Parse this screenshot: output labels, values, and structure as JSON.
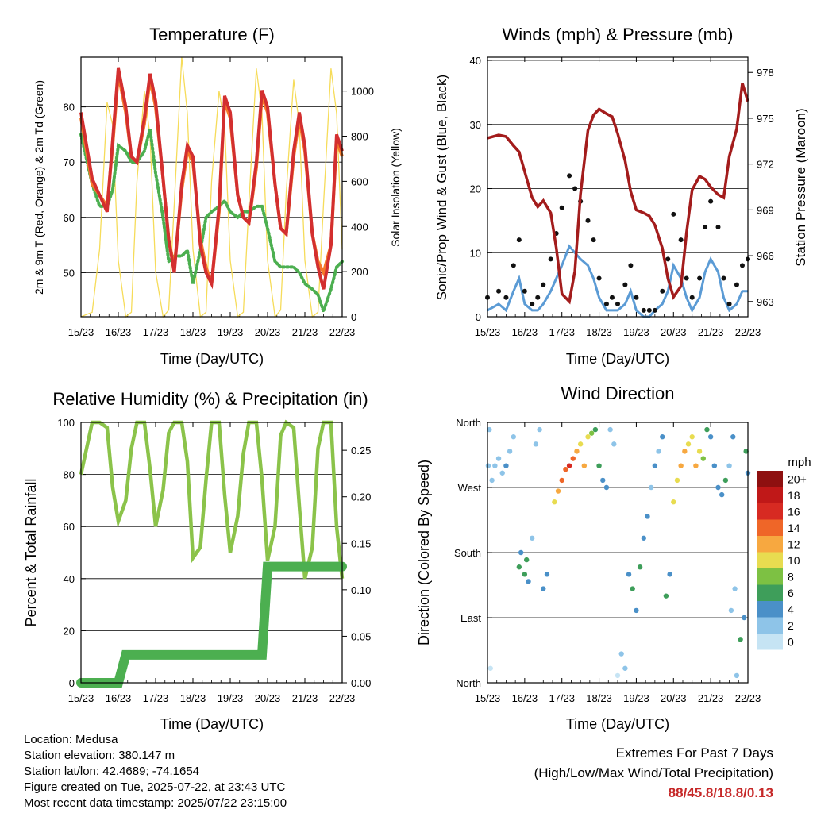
{
  "panels": {
    "temperature": {
      "title": "Temperature (F)",
      "xlabel": "Time (Day/UTC)",
      "ylabel_left": "2m & 9m T (Red, Orange) & 2m Td (Green)",
      "ylabel_right": "Solar Insolation (Yellow)",
      "y_ticks_left": [
        "50",
        "60",
        "70",
        "80"
      ],
      "y_ticks_right": [
        "0",
        "200",
        "400",
        "600",
        "800",
        "1000"
      ]
    },
    "winds": {
      "title": "Winds (mph) & Pressure (mb)",
      "xlabel": "Time (Day/UTC)",
      "ylabel_left": "Sonic/Prop Wind & Gust (Blue, Black)",
      "ylabel_right": "Station Pressure (Maroon)",
      "y_ticks_left": [
        "0",
        "10",
        "20",
        "30",
        "40"
      ],
      "y_ticks_right": [
        "963",
        "966",
        "969",
        "972",
        "975",
        "978"
      ]
    },
    "humidity": {
      "title": "Relative Humidity (%) & Precipitation (in)",
      "xlabel": "Time (Day/UTC)",
      "ylabel_left": "Percent & Total Rainfall",
      "y_ticks_left": [
        "0",
        "20",
        "40",
        "60",
        "80",
        "100"
      ],
      "y_ticks_right": [
        "0.00",
        "0.05",
        "0.10",
        "0.15",
        "0.20",
        "0.25"
      ]
    },
    "direction": {
      "title": "Wind Direction",
      "xlabel": "Time (Day/UTC)",
      "ylabel_left": "Direction (Colored By Speed)",
      "y_ticks_left": [
        "North",
        "East",
        "South",
        "West",
        "North"
      ],
      "legend_title": "mph",
      "legend_labels": [
        "0",
        "2",
        "4",
        "6",
        "8",
        "10",
        "12",
        "14",
        "16",
        "18",
        "20+"
      ],
      "legend_colors": [
        "#c6e4f4",
        "#8ec4e8",
        "#4a90c8",
        "#3e9e5a",
        "#7dc143",
        "#e8dc50",
        "#f7a840",
        "#ef6628",
        "#d72a22",
        "#c01818",
        "#8e1010"
      ]
    }
  },
  "x_ticks": [
    "15/23",
    "16/23",
    "17/23",
    "18/23",
    "19/23",
    "20/23",
    "21/23",
    "22/23"
  ],
  "chart_data": [
    {
      "type": "line",
      "title": "Temperature (F)",
      "xlabel": "Time (Day/UTC)",
      "ylabel": "2m & 9m T (Red, Orange) & 2m Td (Green)",
      "ylabel_right": "Solar Insolation (Yellow)",
      "x": [
        15.0,
        15.3,
        15.5,
        15.7,
        15.85,
        16.0,
        16.2,
        16.35,
        16.5,
        16.7,
        16.85,
        17.0,
        17.2,
        17.35,
        17.5,
        17.7,
        17.85,
        18.0,
        18.2,
        18.35,
        18.5,
        18.7,
        18.85,
        19.0,
        19.2,
        19.35,
        19.5,
        19.7,
        19.85,
        20.0,
        20.2,
        20.35,
        20.5,
        20.7,
        20.85,
        21.0,
        21.2,
        21.35,
        21.5,
        21.7,
        21.85,
        22.0
      ],
      "ylim": [
        42,
        89
      ],
      "ylim_right": [
        0,
        1150
      ],
      "series": [
        {
          "values": [
            79,
            67,
            64,
            61,
            74,
            87,
            80,
            71,
            70,
            78,
            86,
            81,
            67,
            56,
            50,
            66,
            73,
            71,
            55,
            50,
            48,
            62,
            82,
            79,
            64,
            60,
            59,
            70,
            83,
            80,
            66,
            58,
            57,
            72,
            79,
            73,
            57,
            51,
            47,
            55,
            75,
            72
          ],
          "color": "#d32f2f"
        },
        {
          "values": [
            78,
            66,
            64,
            62,
            73,
            86,
            79,
            71,
            70,
            77,
            85,
            80,
            67,
            56,
            51,
            65,
            72,
            70,
            56,
            51,
            48,
            61,
            81,
            78,
            64,
            60,
            59,
            69,
            82,
            79,
            66,
            58,
            57,
            71,
            78,
            72,
            57,
            52,
            50,
            55,
            74,
            71
          ],
          "color": "#f5792a"
        },
        {
          "values": [
            75,
            66,
            62,
            62,
            65,
            73,
            72,
            70,
            70,
            72,
            76,
            68,
            60,
            52,
            53,
            53,
            54,
            48,
            54,
            60,
            61,
            62,
            63,
            61,
            60,
            61,
            61,
            62,
            62,
            58,
            52,
            51,
            51,
            51,
            50,
            48,
            47,
            46,
            43,
            47,
            51,
            52
          ],
          "color": "#4caf50"
        },
        {
          "values": [
            0,
            20,
            300,
            950,
            850,
            250,
            0,
            20,
            600,
            1000,
            800,
            200,
            0,
            30,
            500,
            1150,
            900,
            300,
            0,
            20,
            600,
            1000,
            850,
            250,
            0,
            20,
            500,
            1100,
            900,
            250,
            0,
            30,
            550,
            1050,
            850,
            250,
            0,
            20,
            500,
            1100,
            900,
            300
          ],
          "color": "#f6dc5a",
          "axis": "right"
        }
      ]
    },
    {
      "type": "line",
      "title": "Winds (mph) & Pressure (mb)",
      "xlabel": "Time (Day/UTC)",
      "ylabel": "Sonic/Prop Wind & Gust (Blue, Black)",
      "ylabel_right": "Station Pressure (Maroon)",
      "x": [
        15.0,
        15.3,
        15.5,
        15.7,
        15.85,
        16.0,
        16.2,
        16.35,
        16.5,
        16.7,
        16.85,
        17.0,
        17.2,
        17.35,
        17.5,
        17.7,
        17.85,
        18.0,
        18.2,
        18.35,
        18.5,
        18.7,
        18.85,
        19.0,
        19.2,
        19.35,
        19.5,
        19.7,
        19.85,
        20.0,
        20.2,
        20.35,
        20.5,
        20.7,
        20.85,
        21.0,
        21.2,
        21.35,
        21.5,
        21.7,
        21.85,
        22.0
      ],
      "ylim": [
        0,
        40.5
      ],
      "ylim_right": [
        962,
        979
      ],
      "series": [
        {
          "values": [
            3,
            4,
            3,
            8,
            12,
            4,
            2,
            3,
            5,
            9,
            13,
            17,
            22,
            20,
            18,
            15,
            12,
            6,
            2,
            3,
            2,
            5,
            8,
            3,
            1,
            1,
            1,
            4,
            9,
            16,
            12,
            6,
            3,
            6,
            14,
            18,
            14,
            6,
            2,
            5,
            8,
            9
          ],
          "color": "#111111"
        },
        {
          "values": [
            1,
            2,
            1,
            4,
            6,
            2,
            1,
            1,
            2,
            4,
            6,
            8,
            11,
            10,
            9,
            8,
            6,
            3,
            1,
            1,
            1,
            2,
            4,
            1,
            0,
            0,
            1,
            2,
            4,
            8,
            6,
            3,
            1,
            3,
            7,
            9,
            7,
            3,
            1,
            2,
            4,
            4
          ],
          "color": "#5b9bd5"
        },
        {
          "values": [
            973.7,
            973.9,
            973.8,
            973.2,
            972.8,
            971.5,
            969.8,
            969.2,
            969.6,
            968.8,
            966.5,
            963.5,
            963.0,
            965.0,
            970.0,
            974.2,
            975.2,
            975.6,
            975.3,
            975.1,
            974.0,
            972.2,
            970.2,
            969.0,
            968.8,
            968.6,
            968.0,
            966.5,
            964.5,
            963.3,
            964.0,
            967.5,
            970.3,
            971.2,
            971.0,
            970.5,
            970.0,
            969.8,
            972.5,
            974.3,
            977.3,
            976.1
          ],
          "color": "#a31c1c",
          "axis": "right"
        }
      ]
    },
    {
      "type": "line",
      "title": "Relative Humidity (%) & Precipitation (in)",
      "xlabel": "Time (Day/UTC)",
      "ylabel": "Percent & Total Rainfall",
      "x": [
        15.0,
        15.3,
        15.5,
        15.7,
        15.85,
        16.0,
        16.2,
        16.35,
        16.5,
        16.7,
        16.85,
        17.0,
        17.2,
        17.35,
        17.5,
        17.7,
        17.85,
        18.0,
        18.2,
        18.35,
        18.5,
        18.7,
        18.85,
        19.0,
        19.2,
        19.35,
        19.5,
        19.7,
        19.85,
        20.0,
        20.2,
        20.35,
        20.5,
        20.7,
        20.85,
        21.0,
        21.2,
        21.35,
        21.5,
        21.7,
        21.85,
        22.0
      ],
      "ylim": [
        0,
        100
      ],
      "ylim_right": [
        0,
        0.28
      ],
      "series": [
        {
          "values": [
            80,
            100,
            100,
            98,
            75,
            62,
            70,
            90,
            100,
            100,
            82,
            60,
            74,
            96,
            100,
            100,
            85,
            48,
            52,
            78,
            100,
            100,
            72,
            50,
            64,
            88,
            100,
            100,
            78,
            47,
            60,
            95,
            100,
            98,
            68,
            40,
            52,
            90,
            100,
            100,
            60,
            40
          ],
          "color": "#8bc34a"
        },
        {
          "values": [
            0.0,
            0.0,
            0.0,
            0.0,
            0.0,
            0.0,
            0.03,
            0.03,
            0.03,
            0.03,
            0.03,
            0.03,
            0.03,
            0.03,
            0.03,
            0.03,
            0.03,
            0.03,
            0.03,
            0.03,
            0.03,
            0.03,
            0.03,
            0.03,
            0.03,
            0.03,
            0.03,
            0.03,
            0.03,
            0.125,
            0.125,
            0.125,
            0.125,
            0.125,
            0.125,
            0.125,
            0.125,
            0.125,
            0.125,
            0.125,
            0.125,
            0.125
          ],
          "color": "#4caf50",
          "axis": "right"
        }
      ]
    },
    {
      "type": "scatter",
      "title": "Wind Direction",
      "xlabel": "Time (Day/UTC)",
      "ylabel": "Direction (Colored By Speed)",
      "ylim": [
        0,
        360
      ],
      "points": [
        [
          15.02,
          300,
          1
        ],
        [
          15.05,
          350,
          1
        ],
        [
          15.08,
          20,
          0
        ],
        [
          15.12,
          280,
          2
        ],
        [
          15.2,
          300,
          1
        ],
        [
          15.3,
          310,
          2
        ],
        [
          15.4,
          290,
          2
        ],
        [
          15.5,
          300,
          3
        ],
        [
          15.6,
          320,
          1
        ],
        [
          15.7,
          340,
          1
        ],
        [
          15.85,
          160,
          5
        ],
        [
          15.9,
          180,
          4
        ],
        [
          16.0,
          150,
          6
        ],
        [
          16.05,
          170,
          5
        ],
        [
          16.1,
          140,
          4
        ],
        [
          16.2,
          200,
          2
        ],
        [
          16.3,
          330,
          1
        ],
        [
          16.4,
          350,
          2
        ],
        [
          16.5,
          130,
          3
        ],
        [
          16.6,
          150,
          3
        ],
        [
          16.8,
          250,
          9
        ],
        [
          16.9,
          265,
          11
        ],
        [
          17.0,
          280,
          13
        ],
        [
          17.1,
          295,
          14
        ],
        [
          17.2,
          300,
          15
        ],
        [
          17.3,
          310,
          13
        ],
        [
          17.4,
          320,
          11
        ],
        [
          17.5,
          330,
          10
        ],
        [
          17.6,
          300,
          12
        ],
        [
          17.7,
          340,
          9
        ],
        [
          17.8,
          345,
          8
        ],
        [
          17.9,
          350,
          6
        ],
        [
          18.0,
          300,
          5
        ],
        [
          18.1,
          280,
          3
        ],
        [
          18.2,
          270,
          3
        ],
        [
          18.3,
          350,
          2
        ],
        [
          18.4,
          330,
          1
        ],
        [
          18.5,
          10,
          0
        ],
        [
          18.6,
          40,
          1
        ],
        [
          18.7,
          20,
          2
        ],
        [
          18.8,
          150,
          4
        ],
        [
          18.9,
          130,
          5
        ],
        [
          19.0,
          100,
          4
        ],
        [
          19.1,
          160,
          6
        ],
        [
          19.2,
          200,
          3
        ],
        [
          19.3,
          230,
          4
        ],
        [
          19.4,
          270,
          2
        ],
        [
          19.5,
          300,
          3
        ],
        [
          19.6,
          320,
          2
        ],
        [
          19.7,
          340,
          4
        ],
        [
          19.8,
          120,
          5
        ],
        [
          19.9,
          150,
          4
        ],
        [
          20.0,
          250,
          9
        ],
        [
          20.1,
          280,
          10
        ],
        [
          20.2,
          300,
          12
        ],
        [
          20.3,
          320,
          11
        ],
        [
          20.4,
          330,
          10
        ],
        [
          20.5,
          340,
          9
        ],
        [
          20.6,
          300,
          12
        ],
        [
          20.7,
          320,
          10
        ],
        [
          20.8,
          310,
          7
        ],
        [
          20.9,
          350,
          5
        ],
        [
          21.0,
          340,
          3
        ],
        [
          21.1,
          300,
          4
        ],
        [
          21.2,
          270,
          4
        ],
        [
          21.3,
          260,
          3
        ],
        [
          21.4,
          280,
          5
        ],
        [
          21.5,
          300,
          2
        ],
        [
          21.6,
          340,
          3
        ],
        [
          21.7,
          10,
          1
        ],
        [
          21.8,
          60,
          5
        ],
        [
          21.9,
          90,
          4
        ],
        [
          21.95,
          320,
          6
        ],
        [
          22.0,
          290,
          4
        ],
        [
          21.55,
          100,
          2
        ],
        [
          21.65,
          130,
          1
        ]
      ],
      "point_format": [
        "time",
        "direction_deg",
        "speed_mph"
      ]
    }
  ],
  "footer": {
    "location": "Location: Medusa",
    "elevation": "Station elevation: 380.147 m",
    "latlon": "Station lat/lon: 42.4689; -74.1654",
    "created": "Figure created on Tue, 2025-07-22, at 23:43 UTC",
    "recent": "Most recent data timestamp: 2025/07/22 23:15:00",
    "extremes_title": "Extremes For Past 7 Days",
    "extremes_subtitle": "(High/Low/Max Wind/Total Precipitation)",
    "extremes_values": "88/45.8/18.8/0.13"
  }
}
